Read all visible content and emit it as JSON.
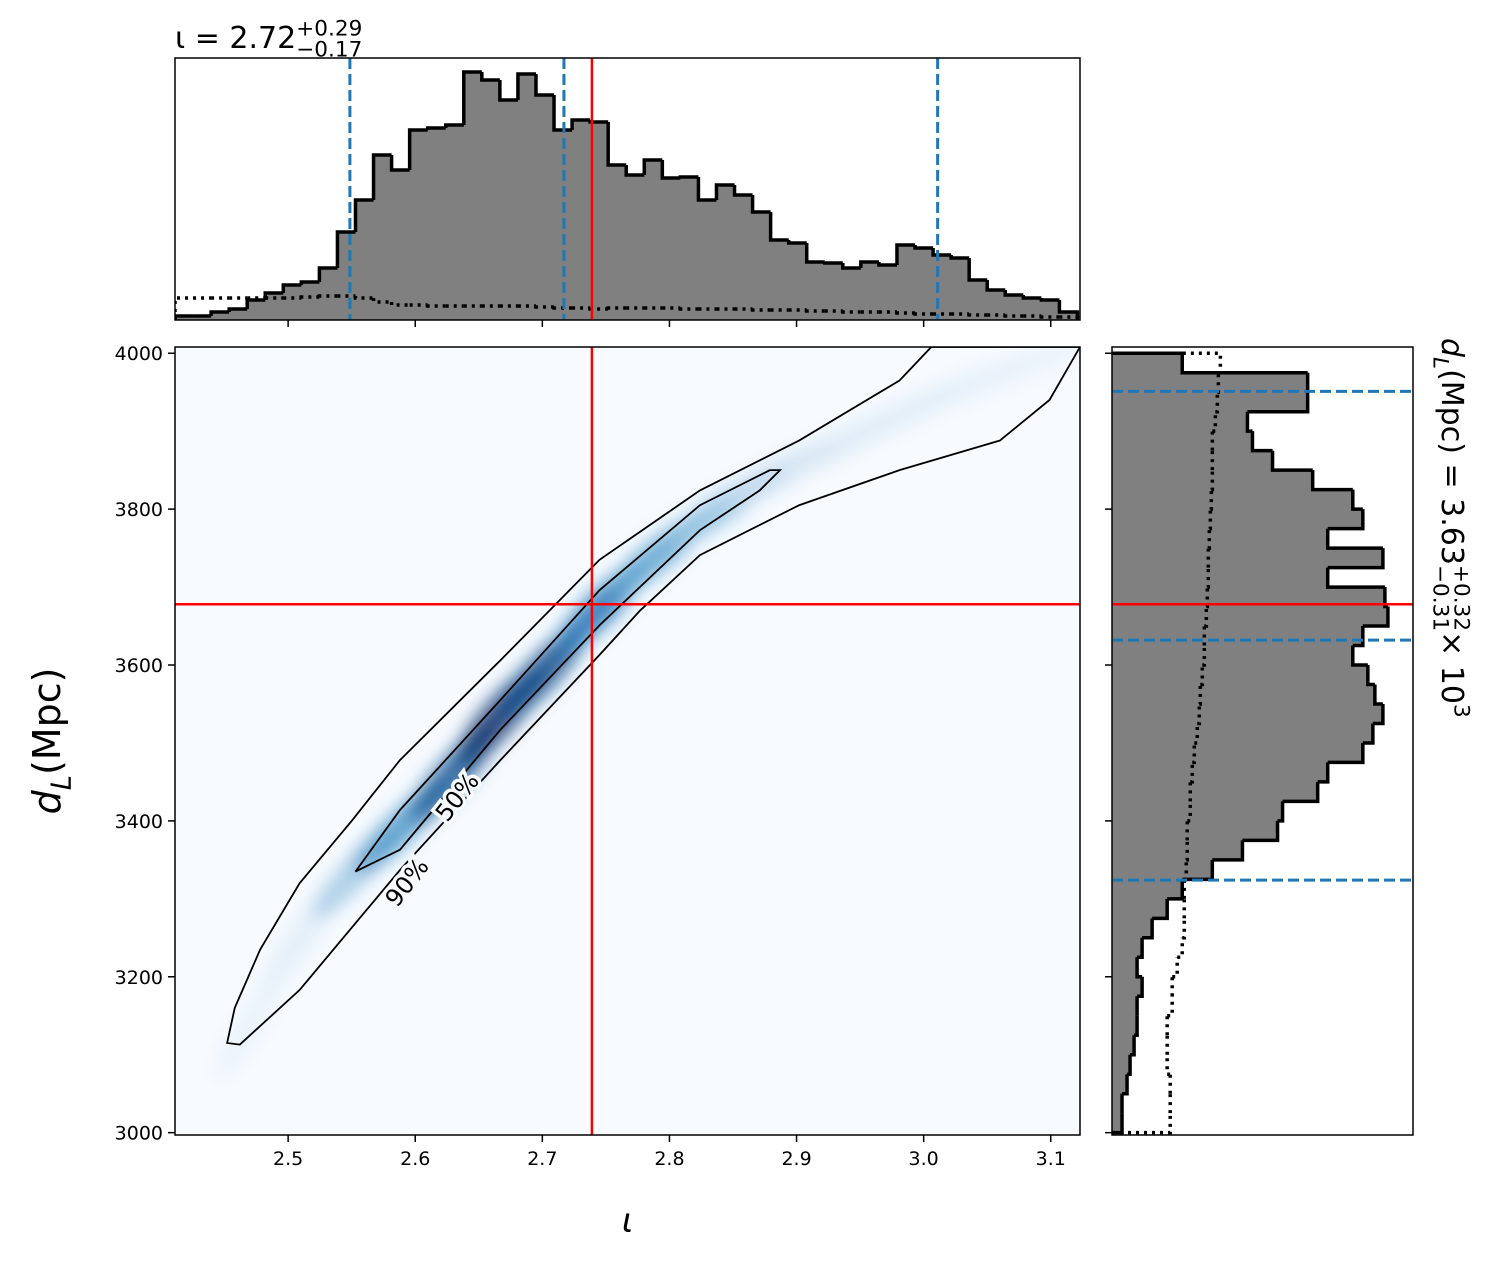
{
  "chart_data": [
    {
      "type": "histogram",
      "orientation": "vertical",
      "title": {
        "text": "ι = 2.72",
        "sup": "+0.29",
        "sub": "−0.17"
      },
      "bins": [
        2.411,
        2.4252,
        2.4394,
        2.4536,
        2.4678,
        2.482,
        2.4962,
        2.5104,
        2.5246,
        2.5388,
        2.553,
        2.5672,
        2.5814,
        2.5956,
        2.6098,
        2.624,
        2.6382,
        2.6524,
        2.6666,
        2.6808,
        2.695,
        2.7092,
        2.7234,
        2.7376,
        2.7518,
        2.766,
        2.7802,
        2.7944,
        2.8086,
        2.8228,
        2.837,
        2.8512,
        2.8654,
        2.8796,
        2.8938,
        2.908,
        2.9222,
        2.9364,
        2.9506,
        2.9648,
        2.979,
        2.9932,
        3.0074,
        3.0216,
        3.0358,
        3.05,
        3.0642,
        3.0784,
        3.0926,
        3.1068,
        3.121
      ],
      "values": [
        4,
        4,
        8,
        11,
        20,
        27,
        35,
        38,
        52,
        88,
        120,
        165,
        150,
        190,
        192,
        195,
        248,
        240,
        220,
        246,
        225,
        190,
        200,
        198,
        155,
        145,
        160,
        142,
        143,
        120,
        135,
        125,
        108,
        80,
        77,
        58,
        57,
        52,
        58,
        55,
        75,
        72,
        65,
        62,
        40,
        30,
        25,
        22,
        20,
        8
      ],
      "color": "#808080",
      "prior": {
        "values": [
          22,
          22,
          22,
          22,
          22,
          22,
          22,
          23,
          24,
          24,
          22,
          18,
          15,
          15,
          14,
          14,
          14,
          14,
          14,
          14,
          13,
          12,
          12,
          11,
          12,
          12,
          12,
          12,
          11,
          11,
          11,
          11,
          10,
          10,
          10,
          9,
          9,
          8,
          8,
          8,
          7,
          6,
          6,
          6,
          5,
          5,
          4,
          4,
          3,
          3
        ],
        "color": "#000000"
      },
      "quantiles": [
        2.5486,
        2.717,
        3.011
      ],
      "quantile_color": "#1f77b4",
      "truth": 2.739,
      "truth_color": "#ff0000",
      "xlim": [
        2.411,
        3.123
      ],
      "ylim": [
        0,
        262
      ],
      "xticks": [
        2.5,
        2.6,
        2.7,
        2.8,
        2.9,
        3.0,
        3.1
      ]
    },
    {
      "type": "density2d",
      "xlabel": "ι",
      "ylabel": {
        "symbol": "d",
        "symbol_sub": "L",
        "unit": " (Mpc)"
      },
      "xlim": [
        2.411,
        3.123
      ],
      "ylim": [
        2997,
        4008
      ],
      "xticks": [
        2.5,
        2.6,
        2.7,
        2.8,
        2.9,
        {
          "value": 3,
          "label": "3.0"
        },
        3.1
      ],
      "yticks": [
        3000,
        3200,
        3400,
        3600,
        3800,
        4000
      ],
      "cmap": [
        "#f7fbff",
        "#c6dbef",
        "#6baed6",
        "#2171b5",
        "#08306b"
      ],
      "density": {
        "x": [
          2.47,
          2.51,
          2.553,
          2.588,
          2.63,
          2.667,
          2.7,
          2.745,
          2.79,
          2.84,
          2.885,
          2.93,
          2.98,
          3.03,
          3.08
        ],
        "y": [
          3140,
          3250,
          3335,
          3390,
          3460,
          3535,
          3590,
          3672,
          3740,
          3800,
          3845,
          3880,
          3920,
          3955,
          3985
        ],
        "values": [
          0.08,
          0.12,
          0.35,
          0.6,
          0.85,
          1.0,
          0.9,
          0.75,
          0.55,
          0.4,
          0.25,
          0.15,
          0.12,
          0.1,
          0.08
        ]
      },
      "contours": [
        {
          "label": "50%",
          "x": [
            2.553,
            2.588,
            2.667,
            2.745,
            2.824,
            2.879,
            2.887,
            2.871,
            2.824,
            2.745,
            2.667,
            2.588
          ],
          "y": [
            3335,
            3414,
            3555,
            3696,
            3805,
            3850,
            3850,
            3824,
            3773,
            3651,
            3517,
            3363
          ]
        },
        {
          "label": "90%",
          "x": [
            2.452,
            2.458,
            2.478,
            2.509,
            2.55,
            2.588,
            2.667,
            2.745,
            2.824,
            2.902,
            2.981,
            3.006,
            3.123,
            3.099,
            3.06,
            2.981,
            2.902,
            2.824,
            2.777,
            2.745,
            2.667,
            2.588,
            2.509,
            2.462
          ],
          "y": [
            3115,
            3160,
            3235,
            3320,
            3400,
            3478,
            3606,
            3735,
            3824,
            3888,
            3965,
            4008,
            4008,
            3940,
            3888,
            3850,
            3805,
            3741,
            3670,
            3613,
            3478,
            3337,
            3183,
            3113
          ]
        }
      ],
      "truth": {
        "x": 2.739,
        "y": 3678
      },
      "truth_color": "#ff0000"
    },
    {
      "type": "histogram",
      "orientation": "horizontal",
      "label": {
        "symbol": "d",
        "symbol_sub": "L",
        "text": " (Mpc) = 3.63",
        "sup": "+0.32",
        "sub": "−0.31",
        "factor": " × 10",
        "factor_sup": "3"
      },
      "bins": [
        3000,
        3025,
        3050,
        3075,
        3100,
        3125,
        3150,
        3175,
        3200,
        3225,
        3250,
        3275,
        3300,
        3325,
        3350,
        3375,
        3400,
        3425,
        3450,
        3475,
        3500,
        3525,
        3550,
        3575,
        3600,
        3625,
        3650,
        3675,
        3700,
        3725,
        3750,
        3775,
        3800,
        3825,
        3850,
        3875,
        3900,
        3925,
        3950,
        3975,
        4000
      ],
      "values": [
        10,
        10,
        15,
        18,
        22,
        25,
        25,
        30,
        25,
        30,
        40,
        55,
        70,
        100,
        130,
        165,
        170,
        205,
        215,
        250,
        260,
        270,
        262,
        255,
        240,
        250,
        275,
        272,
        215,
        270,
        215,
        250,
        240,
        200,
        160,
        140,
        135,
        195,
        195,
        70
      ],
      "color": "#808080",
      "prior": {
        "values": [
          58,
          58,
          58,
          55,
          55,
          55,
          60,
          60,
          65,
          70,
          72,
          72,
          72,
          74,
          75,
          75,
          78,
          78,
          80,
          82,
          85,
          87,
          88,
          90,
          92,
          92,
          94,
          95,
          96,
          96,
          97,
          98,
          99,
          100,
          100,
          100,
          103,
          105,
          106,
          108
        ],
        "color": "#000000"
      },
      "quantiles": [
        3324,
        3632,
        3951
      ],
      "quantile_color": "#1f77b4",
      "truth": 3678,
      "truth_color": "#ff0000",
      "ylim": [
        2997,
        4008
      ],
      "xlim": [
        0,
        300
      ],
      "yticks": [
        3000,
        3200,
        3400,
        3600,
        3800,
        4000
      ]
    }
  ]
}
